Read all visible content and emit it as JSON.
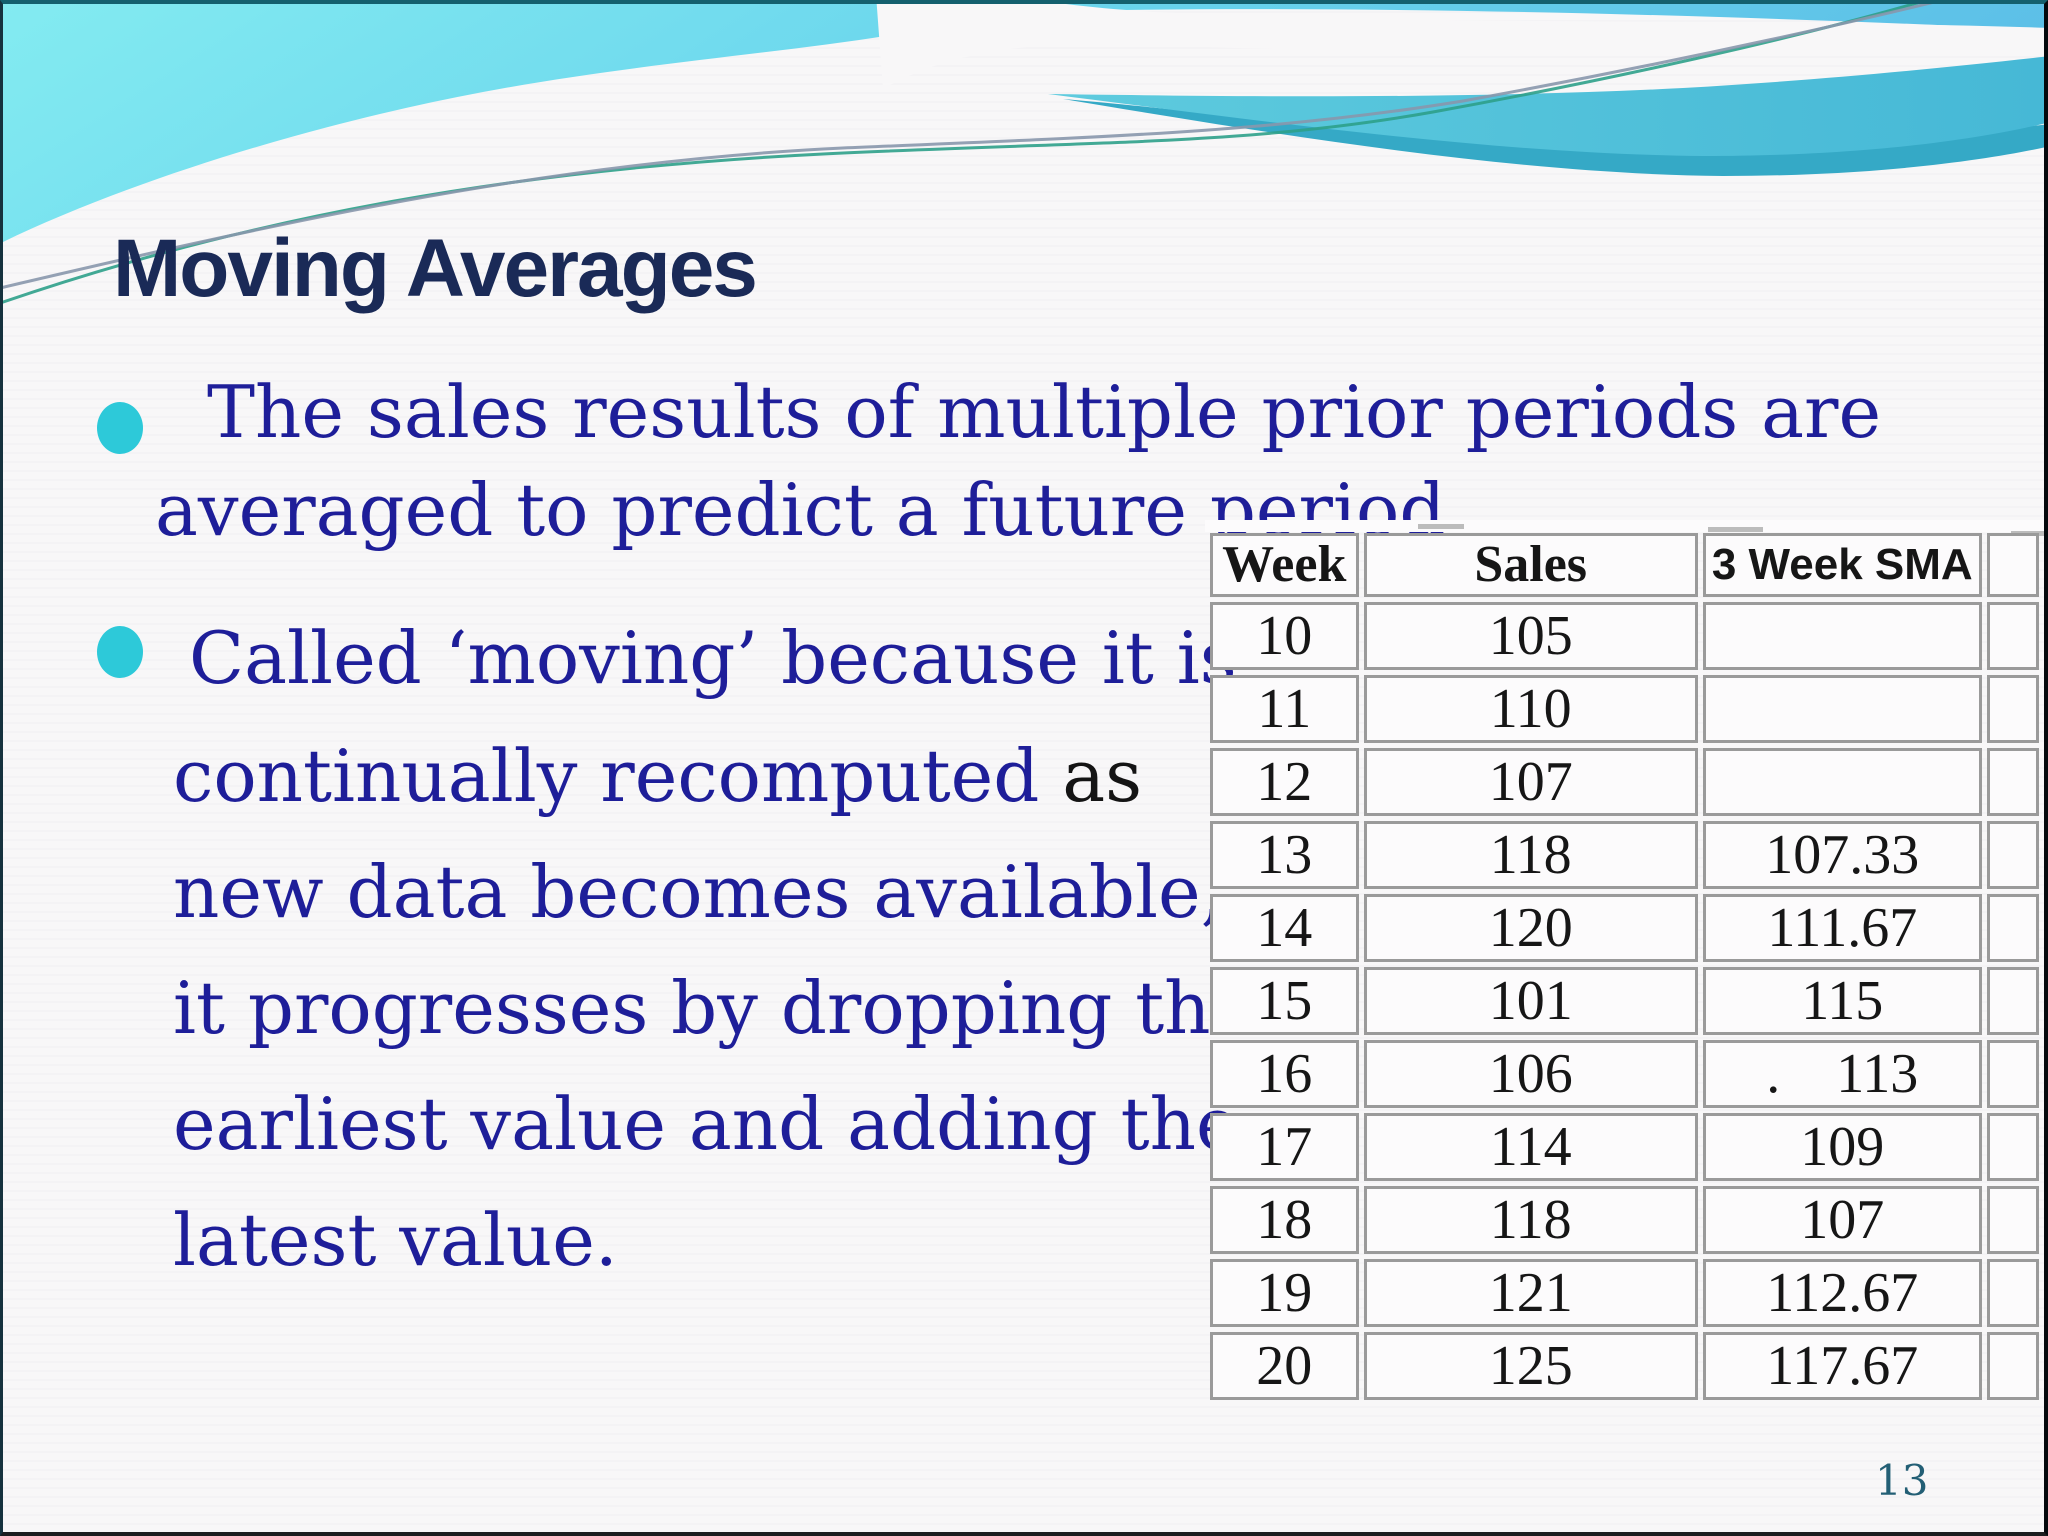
{
  "slide": {
    "title": "Moving Averages",
    "page_number": "13",
    "bullet1": {
      "line1": "The sales results of multiple prior periods are",
      "line2": "averaged to predict a future period"
    },
    "bullet2": {
      "line1": "Called ‘moving’ because it is",
      "line2_blue": "continually recomputed ",
      "line2_black": "as",
      "line3": "new data becomes available,",
      "line4": "it progresses by dropping the",
      "line5": "earliest value and adding the",
      "line6": "latest value."
    },
    "colors": {
      "accent_cyan": "#2dc9d9",
      "title_navy": "#1a2a57",
      "body_blue": "#1e1e99",
      "wave_teal": "#52c4da",
      "page_teal": "#235f75"
    }
  },
  "table": {
    "headers": [
      "Week",
      "Sales",
      "3 Week SMA"
    ],
    "rows": [
      [
        "10",
        "105",
        ""
      ],
      [
        "11",
        "110",
        ""
      ],
      [
        "12",
        "107",
        ""
      ],
      [
        "13",
        "118",
        "107.33"
      ],
      [
        "14",
        "120",
        "111.67"
      ],
      [
        "15",
        "101",
        "115"
      ],
      [
        "16",
        "106",
        ".    113"
      ],
      [
        "17",
        "114",
        "109"
      ],
      [
        "18",
        "118",
        "107"
      ],
      [
        "19",
        "121",
        "112.67"
      ],
      [
        "20",
        "125",
        "117.67"
      ]
    ]
  }
}
